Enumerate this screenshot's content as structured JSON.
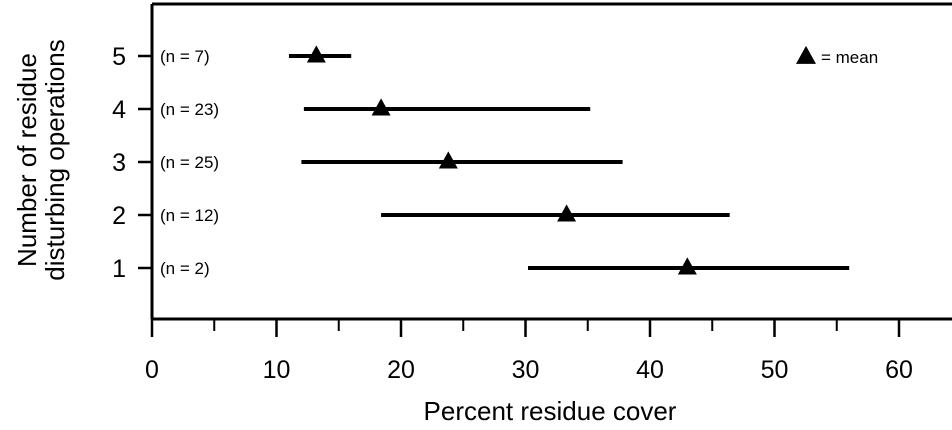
{
  "chart_data": {
    "type": "range",
    "xlabel": "Percent residue cover",
    "ylabel": [
      "Number of residue",
      "disturbing operations"
    ],
    "xlim": [
      0,
      65
    ],
    "ylim": [
      0,
      6
    ],
    "x_ticks": [
      0,
      10,
      20,
      30,
      40,
      50,
      60
    ],
    "x_minor_ticks": [
      5,
      15,
      25,
      35,
      45,
      55
    ],
    "y_ticks": [
      1,
      2,
      3,
      4,
      5
    ],
    "legend": {
      "symbol": "triangle",
      "label": "= mean",
      "position": "top-right"
    },
    "grid": false,
    "series": [
      {
        "operations": 5,
        "n_label": "(n = 7)",
        "min": 11.0,
        "max": 16.0,
        "mean": 13.2
      },
      {
        "operations": 4,
        "n_label": "(n = 23)",
        "min": 12.2,
        "max": 35.2,
        "mean": 18.4
      },
      {
        "operations": 3,
        "n_label": "(n = 25)",
        "min": 12.0,
        "max": 37.8,
        "mean": 23.8
      },
      {
        "operations": 2,
        "n_label": "(n = 12)",
        "min": 18.4,
        "max": 46.4,
        "mean": 33.3
      },
      {
        "operations": 1,
        "n_label": "(n = 2)",
        "min": 30.2,
        "max": 56.0,
        "mean": 43.0
      }
    ]
  }
}
